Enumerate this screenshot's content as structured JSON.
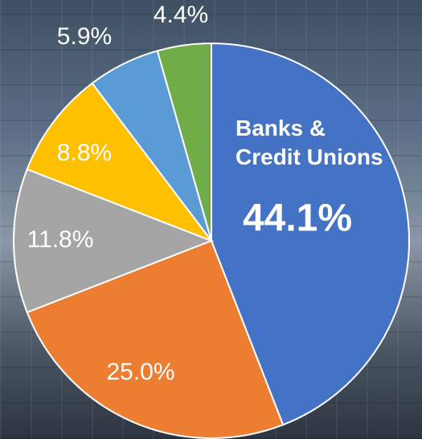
{
  "chart_data": {
    "type": "pie",
    "categories": [
      "Banks &\nCredit Unions",
      null,
      null,
      null,
      null,
      null
    ],
    "values": [
      44.1,
      25.0,
      11.8,
      8.8,
      5.9,
      4.4
    ],
    "value_labels": [
      "44.1%",
      "25.0%",
      "11.8%",
      "8.8%",
      "5.9%",
      "4.4%"
    ],
    "colors": [
      "#4472c4",
      "#ed7d31",
      "#a5a5a5",
      "#ffc000",
      "#5b9bd5",
      "#70ad47"
    ]
  }
}
